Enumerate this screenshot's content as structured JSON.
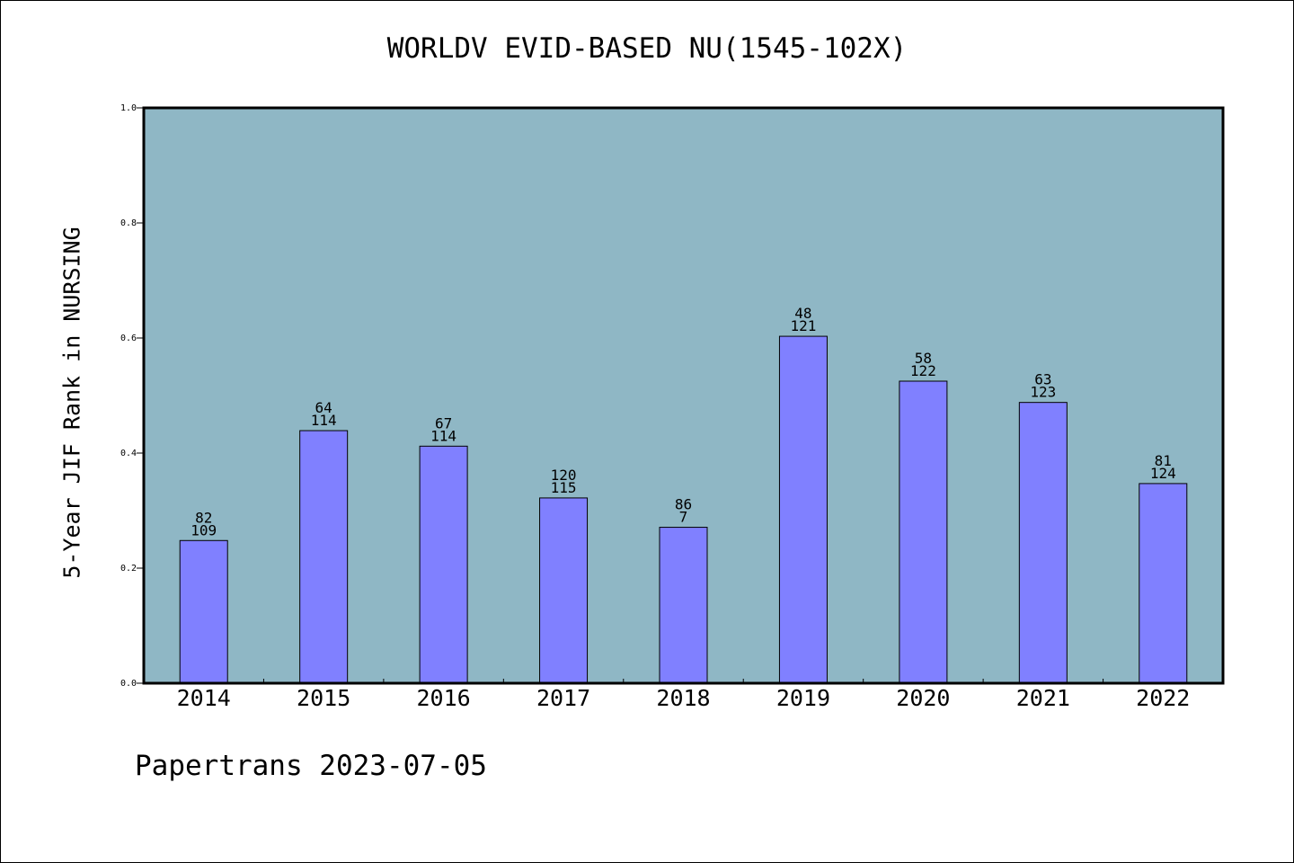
{
  "chart_data": {
    "type": "bar",
    "title": "WORLDV EVID-BASED NU(1545-102X)",
    "ylabel": "5-Year JIF Rank in NURSING",
    "xlabel": "",
    "ylim": [
      0,
      1.0
    ],
    "yticks": [
      "0.0",
      "0.2",
      "0.4",
      "0.6",
      "0.8",
      "1.0"
    ],
    "ytick_values": [
      0,
      0.2,
      0.4,
      0.6,
      0.8,
      1.0
    ],
    "categories": [
      "2014",
      "2015",
      "2016",
      "2017",
      "2018",
      "2019",
      "2020",
      "2021",
      "2022"
    ],
    "values": [
      0.248,
      0.439,
      0.412,
      0.322,
      0.271,
      0.603,
      0.525,
      0.488,
      0.347
    ],
    "rank_labels": [
      "82",
      "64",
      "67",
      "120",
      "86",
      "48",
      "58",
      "63",
      "81"
    ],
    "total_labels": [
      "109",
      "114",
      "114",
      "115",
      "7",
      "121",
      "122",
      "123",
      "124"
    ],
    "grid": false,
    "legend": "none",
    "colors": {
      "plot_background": "#8fb7c5",
      "bar_fill": "#8080ff",
      "bar_edge": "#000000",
      "axes": "#000000"
    }
  },
  "footer": {
    "text": "Papertrans 2023-07-05"
  }
}
